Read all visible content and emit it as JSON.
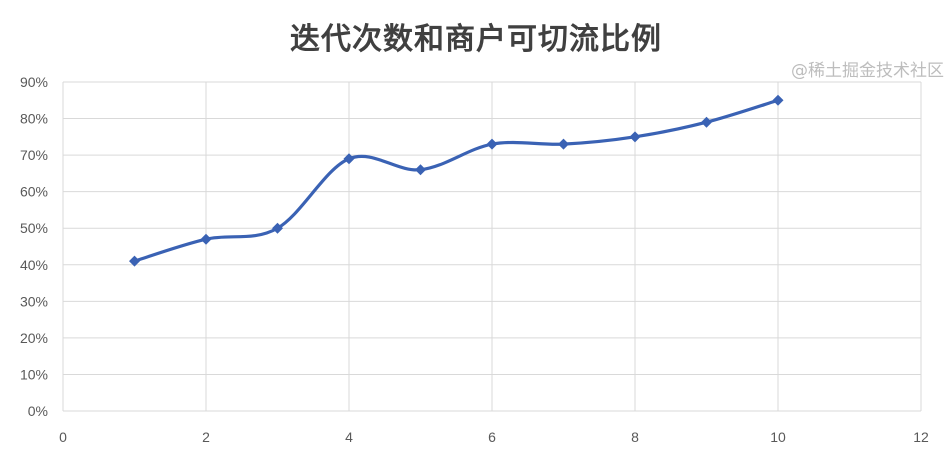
{
  "chart_data": {
    "type": "line",
    "title": "迭代次数和商户可切流比例",
    "xlabel": "",
    "ylabel": "",
    "xlim": [
      0,
      12
    ],
    "ylim": [
      0,
      90
    ],
    "x_ticks": [
      "0",
      "2",
      "4",
      "6",
      "8",
      "10",
      "12"
    ],
    "y_ticks": [
      "0%",
      "10%",
      "20%",
      "30%",
      "40%",
      "50%",
      "60%",
      "70%",
      "80%",
      "90%"
    ],
    "grid": true,
    "smooth": true,
    "marker": "diamond",
    "color": "#3a62b4",
    "series": [
      {
        "x": [
          1,
          2,
          3,
          4,
          5,
          6,
          7,
          8,
          9,
          10
        ],
        "values": [
          41,
          47,
          50,
          69,
          66,
          73,
          73,
          75,
          79,
          85
        ]
      }
    ]
  },
  "watermark": "@稀土掘金技术社区"
}
